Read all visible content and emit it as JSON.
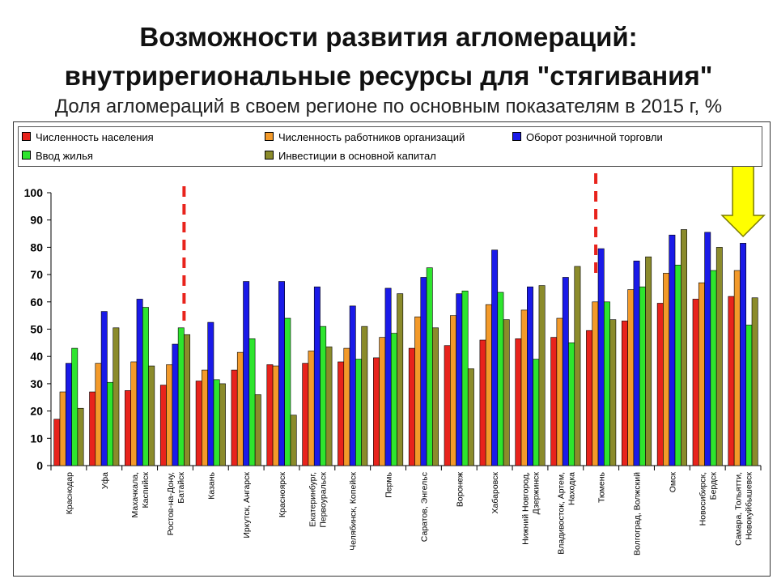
{
  "header": {
    "title_line1": "Возможности развития агломераций:",
    "title_line2": "внутрирегиональные ресурсы для \"стягивания\"",
    "subtitle": "Доля агломераций в своем регионе по основным показателям в 2015 г, %"
  },
  "colors": {
    "population": "#e8231c",
    "employees": "#f39a2a",
    "retail": "#1a1ae8",
    "housing": "#2ee52e",
    "investment": "#8b8b2b",
    "dashed_line": "#e8231c",
    "arrow_fill": "#ffff00",
    "arrow_stroke": "#7a7a00"
  },
  "chart_data": {
    "type": "bar",
    "ylim": [
      0,
      100
    ],
    "yticks": [
      0,
      10,
      20,
      30,
      40,
      50,
      60,
      70,
      80,
      90,
      100
    ],
    "grid": false,
    "legend_position": "top",
    "categories": [
      [
        "Краснодар"
      ],
      [
        "Уфа"
      ],
      [
        "Махачкала,",
        "Каспийск"
      ],
      [
        "Ростов-на-Дону,",
        "Батайск"
      ],
      [
        "Казань"
      ],
      [
        "Иркутск, Ангарск"
      ],
      [
        "Красноярск"
      ],
      [
        "Екатеринбург,",
        "Первоуральск"
      ],
      [
        "Челябинск, Копейск"
      ],
      [
        "Пермь"
      ],
      [
        "Саратов, Энгельс"
      ],
      [
        "Воронеж"
      ],
      [
        "Хабаровск"
      ],
      [
        "Нижний Новгород,",
        "Дзержинск"
      ],
      [
        "Владивосток, Артем,",
        "Находка"
      ],
      [
        "Тюмень"
      ],
      [
        "Волгоград, Волжский"
      ],
      [
        "Омск"
      ],
      [
        "Новосибирск,",
        "Бердск"
      ],
      [
        "Самара, Тольятти,",
        "Новокуйбышевск"
      ]
    ],
    "series": [
      {
        "key": "population",
        "name": "Численность населения",
        "values": [
          17,
          27,
          27.5,
          29.5,
          31,
          35,
          37,
          37.5,
          38,
          39.5,
          43,
          44,
          46,
          46.5,
          47,
          49.5,
          53,
          59.5,
          61,
          62
        ]
      },
      {
        "key": "employees",
        "name": "Численность работников организаций",
        "values": [
          27,
          37.5,
          38,
          37,
          35,
          41.5,
          36.5,
          42,
          43,
          47,
          54.5,
          55,
          59,
          57,
          54,
          60,
          64.5,
          70.5,
          67,
          71.5
        ]
      },
      {
        "key": "retail",
        "name": "Оборот розничной торговли",
        "values": [
          37.5,
          56.5,
          61,
          44.5,
          52.5,
          67.5,
          67.5,
          65.5,
          58.5,
          65,
          69,
          63,
          79,
          65.5,
          69,
          79.5,
          75,
          84.5,
          85.5,
          81.5
        ]
      },
      {
        "key": "housing",
        "name": "Ввод жилья",
        "values": [
          43,
          30.5,
          58,
          50.5,
          31.5,
          46.5,
          54,
          51,
          39,
          48.5,
          72.5,
          64,
          63.5,
          39,
          45,
          60,
          65.5,
          73.5,
          71.5,
          51.5
        ]
      },
      {
        "key": "investment",
        "name": "Инвестиции в основной капитал",
        "values": [
          21,
          50.5,
          36.5,
          48,
          30,
          26,
          18.5,
          43.5,
          51,
          63,
          50.5,
          35.5,
          53.5,
          66,
          73,
          53.5,
          76.5,
          86.5,
          80,
          61.5
        ]
      }
    ],
    "annotations": {
      "dashed_dividers_after_category_index": [
        4,
        15
      ],
      "arrow_over_category_index": 19
    }
  }
}
